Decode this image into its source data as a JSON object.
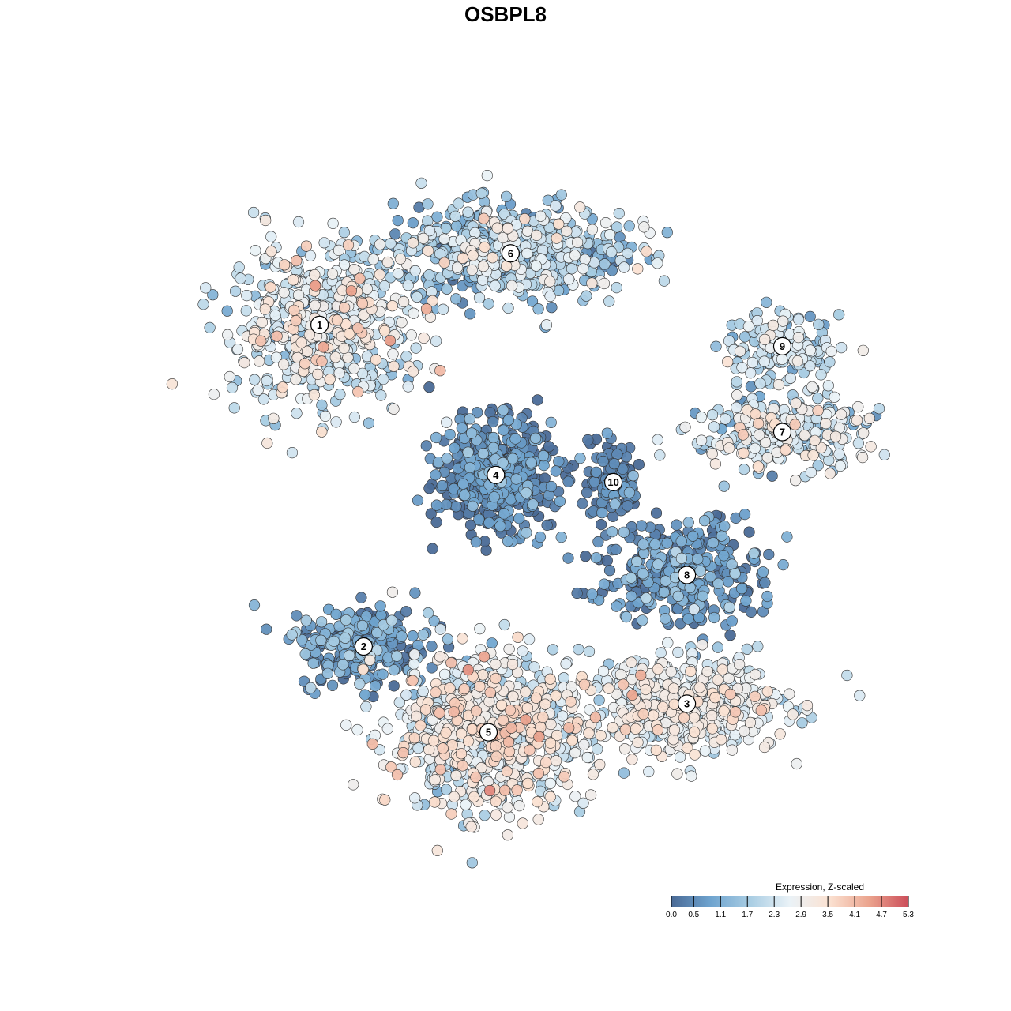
{
  "chart_data": {
    "type": "scatter",
    "title": "OSBPL8",
    "xlabel": "",
    "ylabel": "",
    "axes_visible": false,
    "grid": false,
    "point_style": {
      "outline": "#333333",
      "opacity": 0.95
    },
    "legend": {
      "title": "Expression, Z-scaled",
      "placement": "bottom-right",
      "ticks": [
        "0.0",
        "0.5",
        "1.1",
        "1.7",
        "2.3",
        "2.9",
        "3.5",
        "4.1",
        "4.7",
        "5.3"
      ],
      "range": [
        0.0,
        5.3
      ],
      "colors": [
        "#4a6a96",
        "#6fa4cf",
        "#a9cde3",
        "#eaf2f7",
        "#fbe2d2",
        "#eba48e",
        "#cc4e5a"
      ]
    },
    "clusters": [
      {
        "label": "1",
        "x": 0.22,
        "y": 0.75,
        "spread": [
          0.11,
          0.1
        ],
        "n": 560,
        "mean_expr": 2.4,
        "sd": 0.7
      },
      {
        "label": "2",
        "x": 0.28,
        "y": 0.3,
        "spread": [
          0.08,
          0.05
        ],
        "n": 260,
        "mean_expr": 0.7,
        "sd": 0.6
      },
      {
        "label": "3",
        "x": 0.72,
        "y": 0.22,
        "spread": [
          0.12,
          0.06
        ],
        "n": 520,
        "mean_expr": 2.6,
        "sd": 0.5
      },
      {
        "label": "4",
        "x": 0.46,
        "y": 0.54,
        "spread": [
          0.07,
          0.07
        ],
        "n": 520,
        "mean_expr": 0.4,
        "sd": 0.5
      },
      {
        "label": "5",
        "x": 0.45,
        "y": 0.18,
        "spread": [
          0.12,
          0.1
        ],
        "n": 820,
        "mean_expr": 2.7,
        "sd": 0.7
      },
      {
        "label": "6",
        "x": 0.48,
        "y": 0.85,
        "spread": [
          0.14,
          0.06
        ],
        "n": 620,
        "mean_expr": 1.7,
        "sd": 0.8
      },
      {
        "label": "7",
        "x": 0.85,
        "y": 0.6,
        "spread": [
          0.11,
          0.05
        ],
        "n": 280,
        "mean_expr": 2.2,
        "sd": 0.7
      },
      {
        "label": "8",
        "x": 0.72,
        "y": 0.4,
        "spread": [
          0.1,
          0.07
        ],
        "n": 320,
        "mean_expr": 0.6,
        "sd": 0.6
      },
      {
        "label": "9",
        "x": 0.85,
        "y": 0.72,
        "spread": [
          0.07,
          0.04
        ],
        "n": 160,
        "mean_expr": 1.9,
        "sd": 0.6
      },
      {
        "label": "10",
        "x": 0.62,
        "y": 0.53,
        "spread": [
          0.03,
          0.05
        ],
        "n": 120,
        "mean_expr": 0.3,
        "sd": 0.4
      }
    ]
  }
}
